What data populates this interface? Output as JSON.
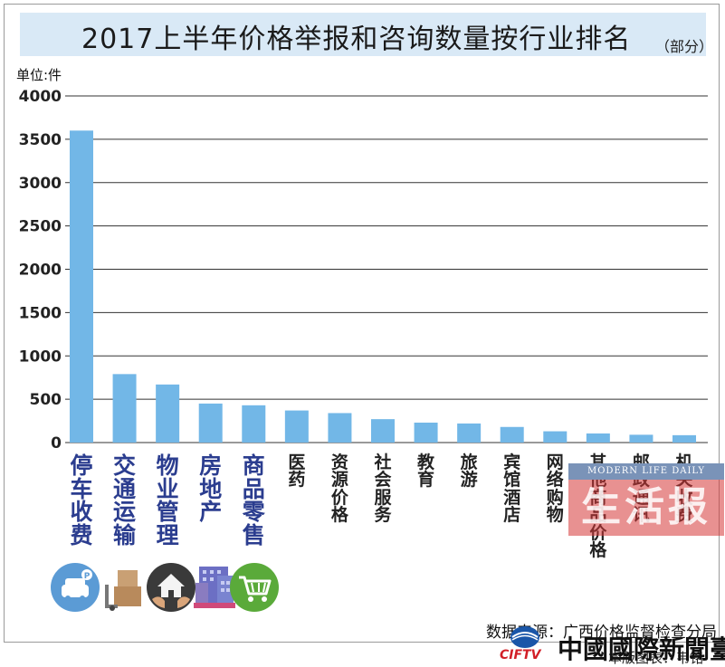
{
  "title": "2017上半年价格举报和咨询数量按行业排名",
  "subtitle": "（部分）",
  "unit_label": "单位:件",
  "source_text": "数据来源：广西价格监督检查分局",
  "editor_text": "本版图表：韦铭",
  "watermark": {
    "banner": "MODERN LIFE DAILY",
    "name": "生活报"
  },
  "broadcaster": {
    "abbr": "CIFTV",
    "name": "中國國際新聞臺"
  },
  "colors": {
    "bar": "#72b7e7",
    "title_band": "#d9e9f6",
    "highlight_label": "#2b3d8f"
  },
  "chart_data": {
    "type": "bar",
    "title": "2017上半年价格举报和咨询数量按行业排名",
    "ylabel": "单位:件",
    "ylim": [
      0,
      4000
    ],
    "yticks": [
      0,
      500,
      1000,
      1500,
      2000,
      2500,
      3000,
      3500,
      4000
    ],
    "grid": true,
    "categories": [
      "停车收费",
      "交通运输",
      "物业管理",
      "房地产",
      "商品零售",
      "医药",
      "资源价格",
      "社会服务",
      "教育",
      "旅游",
      "宾馆酒店",
      "网络购物",
      "其他商品价格",
      "邮政通讯",
      "机关收费"
    ],
    "values": [
      3600,
      790,
      670,
      450,
      430,
      370,
      340,
      270,
      230,
      220,
      180,
      130,
      105,
      90,
      85
    ]
  },
  "icons": [
    "parking-car-icon",
    "delivery-boxes-icon",
    "house-hands-icon",
    "building-icon",
    "shopping-cart-icon"
  ]
}
